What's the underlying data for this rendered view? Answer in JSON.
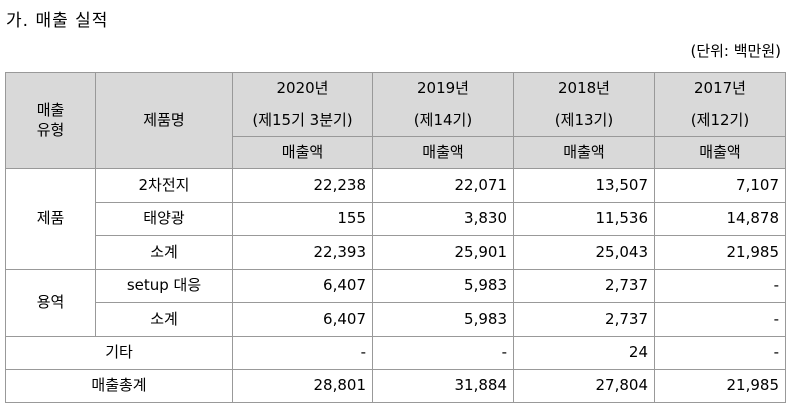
{
  "header": {
    "title": "가. 매출 실적",
    "unit": "(단위: 백만원)"
  },
  "table": {
    "col_type": "매출\n유형",
    "col_product": "제품명",
    "years": [
      {
        "year": "2020년",
        "period": "(제15기 3분기)",
        "metric": "매출액"
      },
      {
        "year": "2019년",
        "period": "(제14기)",
        "metric": "매출액"
      },
      {
        "year": "2018년",
        "period": "(제13기)",
        "metric": "매출액"
      },
      {
        "year": "2017년",
        "period": "(제12기)",
        "metric": "매출액"
      }
    ],
    "groups": [
      {
        "label": "제품",
        "rows": [
          {
            "name": "2차전지",
            "values": [
              "22,238",
              "22,071",
              "13,507",
              "7,107"
            ]
          },
          {
            "name": "태양광",
            "values": [
              "155",
              "3,830",
              "11,536",
              "14,878"
            ]
          },
          {
            "name": "소계",
            "values": [
              "22,393",
              "25,901",
              "25,043",
              "21,985"
            ]
          }
        ]
      },
      {
        "label": "용역",
        "rows": [
          {
            "name": "setup 대응",
            "values": [
              "6,407",
              "5,983",
              "2,737",
              "-"
            ]
          },
          {
            "name": "소계",
            "values": [
              "6,407",
              "5,983",
              "2,737",
              "-"
            ]
          }
        ]
      }
    ],
    "totals": [
      {
        "label": "기타",
        "values": [
          "-",
          "-",
          "24",
          "-"
        ]
      },
      {
        "label": "매출총계",
        "values": [
          "28,801",
          "31,884",
          "27,804",
          "21,985"
        ]
      }
    ]
  }
}
